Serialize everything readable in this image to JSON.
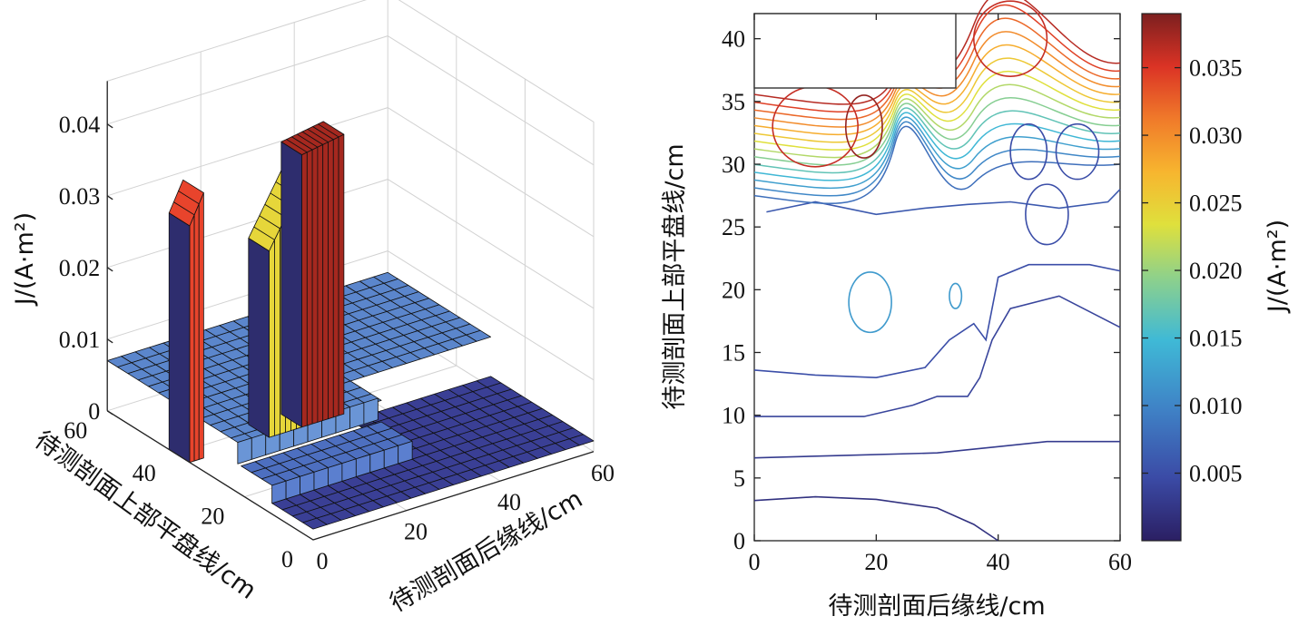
{
  "chart_data": [
    {
      "type": "surface",
      "xlabel": "待测剖面后缘线/cm",
      "ylabel": "待测剖面上部平盘线/cm",
      "zlabel": "J/(A·m²)",
      "x_ticks": [
        "0",
        "20",
        "40",
        "60"
      ],
      "y_ticks": [
        "0",
        "20",
        "40",
        "60"
      ],
      "z_ticks": [
        "0",
        "0.01",
        "0.02",
        "0.03",
        "0.04"
      ],
      "xlim": [
        0,
        60
      ],
      "ylim": [
        0,
        60
      ],
      "zlim": [
        0,
        0.04
      ],
      "walls": [
        {
          "x0": 0,
          "x1": 3,
          "y0": 36,
          "y1": 42,
          "z_left": 0.033,
          "z_right": 0.037,
          "color": "#e8442c"
        },
        {
          "x0": 17,
          "x1": 24,
          "y0": 36,
          "y1": 42,
          "z_left": 0.026,
          "z_right": 0.034,
          "color": "#e6d63a"
        },
        {
          "x0": 24,
          "x1": 33,
          "y0": 36,
          "y1": 42,
          "z_left": 0.038,
          "z_right": 0.039,
          "color": "#a5281f"
        }
      ],
      "surface_levels": {
        "near_front": 0.0015,
        "mid": 0.004,
        "plateau": 0.007
      }
    },
    {
      "type": "contour",
      "xlabel": "待测剖面后缘线/cm",
      "ylabel": "待测剖面上部平盘线/cm",
      "colorbar_label": "J/(A·m²)",
      "x_ticks": [
        "0",
        "20",
        "40",
        "60"
      ],
      "y_ticks": [
        "0",
        "5",
        "10",
        "15",
        "20",
        "25",
        "30",
        "35",
        "40"
      ],
      "colorbar_ticks": [
        "0.005",
        "0.010",
        "0.015",
        "0.020",
        "0.025",
        "0.030",
        "0.035"
      ],
      "xlim": [
        0,
        60
      ],
      "ylim": [
        0,
        42
      ],
      "clim": [
        0,
        0.039
      ],
      "blank_region": {
        "x": [
          0,
          33
        ],
        "y": [
          36,
          42
        ]
      },
      "contour_lines": [
        {
          "level": 0.002,
          "x": [
            0,
            10,
            20,
            30,
            36,
            40
          ],
          "y": [
            3.2,
            3.5,
            3.3,
            2.6,
            1.3,
            0
          ]
        },
        {
          "level": 0.003,
          "x": [
            0,
            15,
            30,
            40,
            48,
            60
          ],
          "y": [
            6.6,
            6.8,
            7.0,
            7.5,
            7.9,
            7.9
          ]
        },
        {
          "level": 0.004,
          "x": [
            0,
            18,
            26,
            30,
            35,
            37,
            39,
            42,
            50,
            60
          ],
          "y": [
            9.9,
            9.9,
            10.8,
            11.5,
            11.5,
            13,
            16,
            18.5,
            19.5,
            17
          ]
        },
        {
          "level": 0.005,
          "x": [
            0,
            10,
            20,
            28,
            32,
            36,
            38,
            40,
            45,
            55,
            60
          ],
          "y": [
            13.6,
            13.2,
            13.0,
            13.8,
            16,
            17.3,
            16,
            21,
            22,
            22,
            21.5
          ]
        },
        {
          "level": 0.006,
          "x": [
            2,
            10,
            20,
            28,
            35,
            42,
            50,
            58,
            60
          ],
          "y": [
            26.2,
            27,
            26,
            26.5,
            26.8,
            27,
            26.5,
            27,
            28
          ]
        }
      ]
    }
  ]
}
